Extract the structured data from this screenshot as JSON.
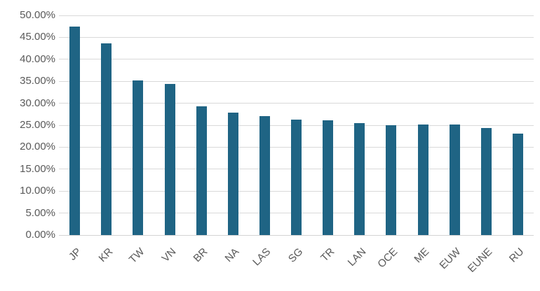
{
  "chart_data": {
    "type": "bar",
    "title": "",
    "xlabel": "",
    "ylabel": "",
    "categories": [
      "JP",
      "KR",
      "TW",
      "VN",
      "BR",
      "NA",
      "LAS",
      "SG",
      "TR",
      "LAN",
      "OCE",
      "ME",
      "EUW",
      "EUNE",
      "RU"
    ],
    "values": [
      47.4,
      43.7,
      35.2,
      34.4,
      29.3,
      27.9,
      27.1,
      26.2,
      26.1,
      25.5,
      25.0,
      25.1,
      25.1,
      24.4,
      23.1
    ],
    "value_unit": "%",
    "ylim": [
      0,
      50
    ],
    "ytick_step": 5,
    "ytick_labels": [
      "0.00%",
      "5.00%",
      "10.00%",
      "15.00%",
      "20.00%",
      "25.00%",
      "30.00%",
      "35.00%",
      "40.00%",
      "45.00%",
      "50.00%"
    ],
    "grid": true,
    "legend_position": "none",
    "colors": {
      "bar": "#1F6484",
      "grid": "#D9D9D9",
      "axis_line": "#D3D3D3",
      "axis_text": "#595959",
      "background": "#FFFFFF"
    }
  }
}
